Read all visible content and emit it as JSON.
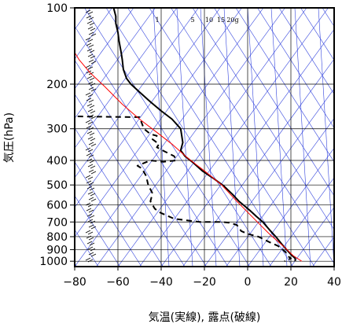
{
  "chart_data": {
    "type": "line",
    "xlabel": "気温(実線), 露点(破線)",
    "ylabel": "気圧(hPa)",
    "xlim": [
      -80,
      40
    ],
    "ylim": [
      1050,
      100
    ],
    "y_scale": "log",
    "x_ticks": [
      "−80",
      "−60",
      "−40",
      "−20",
      "0",
      "20",
      "40"
    ],
    "x_tick_values": [
      -80,
      -60,
      -40,
      -20,
      0,
      20,
      40
    ],
    "y_ticks": [
      "100",
      "200",
      "300",
      "400",
      "500",
      "600",
      "700",
      "800",
      "900",
      "1000"
    ],
    "y_tick_values": [
      100,
      200,
      300,
      400,
      500,
      600,
      700,
      800,
      900,
      1000
    ],
    "mixing_ratio_labels": [
      "1",
      "5",
      "10",
      "15",
      "20g"
    ],
    "series": [
      {
        "style": "solid",
        "color": "#000000",
        "points": [
          [
            -62,
            100
          ],
          [
            -61,
            108
          ],
          [
            -61,
            115
          ],
          [
            -60,
            125
          ],
          [
            -59.5,
            135
          ],
          [
            -58.5,
            150
          ],
          [
            -58,
            160
          ],
          [
            -57.5,
            175
          ],
          [
            -56,
            190
          ],
          [
            -54,
            200
          ],
          [
            -50,
            215
          ],
          [
            -45,
            235
          ],
          [
            -40,
            255
          ],
          [
            -35,
            275
          ],
          [
            -31,
            300
          ],
          [
            -30,
            340
          ],
          [
            -31,
            365
          ],
          [
            -29,
            385
          ],
          [
            -25,
            410
          ],
          [
            -21,
            440
          ],
          [
            -16,
            470
          ],
          [
            -11,
            505
          ],
          [
            -7,
            545
          ],
          [
            -4,
            580
          ],
          [
            1,
            630
          ],
          [
            4,
            665
          ],
          [
            7,
            700
          ],
          [
            10,
            750
          ],
          [
            13,
            800
          ],
          [
            16,
            860
          ],
          [
            18,
            900
          ],
          [
            20,
            940
          ],
          [
            22,
            975
          ],
          [
            22,
            1000
          ]
        ]
      },
      {
        "style": "dashed",
        "color": "#000000",
        "points": [
          [
            -83,
            268
          ],
          [
            -50,
            270
          ],
          [
            -48,
            300
          ],
          [
            -45,
            315
          ],
          [
            -42,
            320
          ],
          [
            -44,
            330
          ],
          [
            -41,
            345
          ],
          [
            -42,
            355
          ],
          [
            -38,
            370
          ],
          [
            -34,
            385
          ],
          [
            -33,
            400
          ],
          [
            -39,
            405
          ],
          [
            -45,
            400
          ],
          [
            -51,
            420
          ],
          [
            -49,
            430
          ],
          [
            -47,
            460
          ],
          [
            -46,
            500
          ],
          [
            -44,
            540
          ],
          [
            -45,
            580
          ],
          [
            -43,
            620
          ],
          [
            -41,
            640
          ],
          [
            -34,
            680
          ],
          [
            -22,
            700
          ],
          [
            -12,
            700
          ],
          [
            -8,
            705
          ],
          [
            -5,
            720
          ],
          [
            -3,
            760
          ],
          [
            0,
            780
          ],
          [
            5,
            800
          ],
          [
            10,
            840
          ],
          [
            14,
            870
          ],
          [
            16,
            895
          ],
          [
            18,
            930
          ],
          [
            19,
            960
          ],
          [
            20,
            975
          ],
          [
            17,
            1000
          ]
        ]
      },
      {
        "style": "solid",
        "color": "#ff0000",
        "points": [
          [
            25,
            1000
          ],
          [
            21,
            950
          ],
          [
            17,
            880
          ],
          [
            10,
            780
          ],
          [
            3,
            680
          ],
          [
            -5,
            580
          ],
          [
            -12,
            500
          ],
          [
            -20,
            440
          ],
          [
            -28,
            390
          ],
          [
            -35,
            345
          ],
          [
            -42,
            310
          ],
          [
            -50,
            275
          ],
          [
            -58,
            240
          ],
          [
            -66,
            205
          ],
          [
            -73,
            180
          ],
          [
            -78,
            160
          ],
          [
            -80,
            150
          ]
        ]
      }
    ],
    "grid": true
  }
}
